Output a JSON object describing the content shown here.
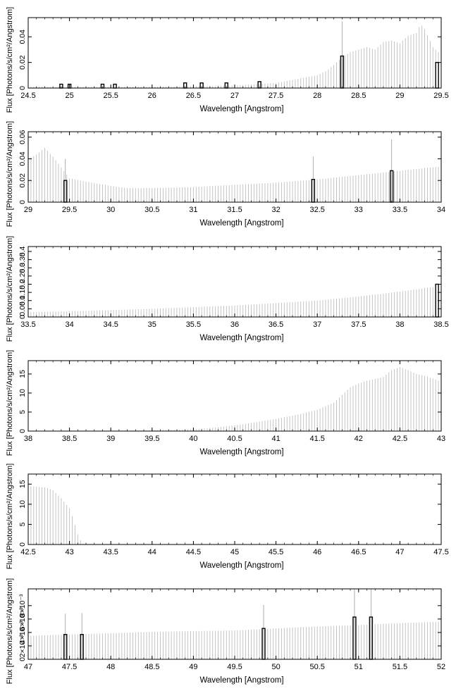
{
  "figure": {
    "ylabel_text": "Flux [Photons/s/cm²/Angstrom]"
  },
  "chart_data": [
    {
      "type": "bar",
      "xlabel": "Wavelength [Angstrom]",
      "ylabel": "Flux [Photons/s/cm²/Angstrom]",
      "xlim": [
        24.5,
        29.5
      ],
      "ylim": [
        0,
        0.055
      ],
      "xticks": [
        "24.5",
        "25",
        "25.5",
        "26",
        "26.5",
        "27",
        "27.5",
        "28",
        "28.5",
        "29",
        "29.5"
      ],
      "yticks": [
        "0",
        "0.02",
        "0.04"
      ],
      "continuum": [
        [
          24.5,
          0.001
        ],
        [
          26.0,
          0.001
        ],
        [
          27.0,
          0.002
        ],
        [
          27.5,
          0.004
        ],
        [
          28.0,
          0.01
        ],
        [
          28.1,
          0.013
        ],
        [
          28.2,
          0.018
        ],
        [
          28.3,
          0.024
        ],
        [
          28.4,
          0.028
        ],
        [
          28.5,
          0.03
        ],
        [
          28.6,
          0.032
        ],
        [
          28.7,
          0.03
        ],
        [
          28.8,
          0.036
        ],
        [
          28.9,
          0.037
        ],
        [
          29.0,
          0.035
        ],
        [
          29.1,
          0.041
        ],
        [
          29.2,
          0.043
        ],
        [
          29.25,
          0.05
        ],
        [
          29.3,
          0.046
        ],
        [
          29.4,
          0.032
        ],
        [
          29.5,
          0.026
        ]
      ],
      "highlighted_bins": [
        {
          "x": 24.9,
          "y": 0.003
        },
        {
          "x": 25.0,
          "y": 0.003
        },
        {
          "x": 25.4,
          "y": 0.003
        },
        {
          "x": 25.55,
          "y": 0.003
        },
        {
          "x": 26.4,
          "y": 0.004
        },
        {
          "x": 26.6,
          "y": 0.004
        },
        {
          "x": 26.9,
          "y": 0.004
        },
        {
          "x": 27.3,
          "y": 0.005
        },
        {
          "x": 28.3,
          "y": 0.025
        },
        {
          "x": 29.45,
          "y": 0.02
        }
      ],
      "error_spikes": [
        {
          "x": 28.3,
          "y": 0.052
        }
      ]
    },
    {
      "type": "bar",
      "xlabel": "Wavelength [Angstrom]",
      "ylabel": "Flux [Photons/s/cm²/Angstrom]",
      "xlim": [
        29,
        34
      ],
      "ylim": [
        0,
        0.065
      ],
      "xticks": [
        "29",
        "29.5",
        "30",
        "30.5",
        "31",
        "31.5",
        "32",
        "32.5",
        "33",
        "33.5",
        "34"
      ],
      "yticks": [
        "0",
        "0.02",
        "0.04",
        "0.06"
      ],
      "continuum": [
        [
          29.0,
          0.04
        ],
        [
          29.1,
          0.044
        ],
        [
          29.2,
          0.05
        ],
        [
          29.3,
          0.042
        ],
        [
          29.4,
          0.032
        ],
        [
          29.5,
          0.022
        ],
        [
          29.7,
          0.019
        ],
        [
          30.0,
          0.015
        ],
        [
          30.2,
          0.013
        ],
        [
          30.5,
          0.013
        ],
        [
          31.0,
          0.014
        ],
        [
          31.5,
          0.016
        ],
        [
          32.0,
          0.018
        ],
        [
          32.5,
          0.021
        ],
        [
          33.0,
          0.025
        ],
        [
          33.5,
          0.029
        ],
        [
          34.0,
          0.033
        ]
      ],
      "highlighted_bins": [
        {
          "x": 29.45,
          "y": 0.02
        },
        {
          "x": 32.45,
          "y": 0.021
        },
        {
          "x": 33.4,
          "y": 0.029
        }
      ],
      "error_spikes": [
        {
          "x": 29.45,
          "y": 0.04
        },
        {
          "x": 32.45,
          "y": 0.042
        },
        {
          "x": 33.4,
          "y": 0.058
        }
      ]
    },
    {
      "type": "bar",
      "xlabel": "Wavelength [Angstrom]",
      "ylabel": "Flux [Photons/s/cm²/Angstrom]",
      "xlim": [
        33.5,
        38.5
      ],
      "ylim": [
        0,
        0.43
      ],
      "xticks": [
        "33.5",
        "34",
        "34.5",
        "35",
        "35.5",
        "36",
        "36.5",
        "37",
        "37.5",
        "38",
        "38.5"
      ],
      "yticks": [
        "0",
        "0.05",
        "0.1",
        "0.15",
        "0.2",
        "0.25",
        "0.3",
        "0.35",
        "0.4"
      ],
      "continuum": [
        [
          33.5,
          0.03
        ],
        [
          34.0,
          0.035
        ],
        [
          34.5,
          0.042
        ],
        [
          35.0,
          0.05
        ],
        [
          35.5,
          0.06
        ],
        [
          36.0,
          0.07
        ],
        [
          36.5,
          0.085
        ],
        [
          37.0,
          0.1
        ],
        [
          37.5,
          0.125
        ],
        [
          38.0,
          0.155
        ],
        [
          38.5,
          0.19
        ]
      ],
      "highlighted_bins": [
        {
          "x": 38.45,
          "y": 0.2
        }
      ],
      "error_spikes": []
    },
    {
      "type": "bar",
      "xlabel": "Wavelength [Angstrom]",
      "ylabel": "Flux [Photons/s/cm²/Angstrom]",
      "xlim": [
        38,
        43
      ],
      "ylim": [
        0,
        18.5
      ],
      "xticks": [
        "38",
        "38.5",
        "39",
        "39.5",
        "40",
        "40.5",
        "41",
        "41.5",
        "42",
        "42.5",
        "43"
      ],
      "yticks": [
        "0",
        "5",
        "10",
        "15"
      ],
      "continuum": [
        [
          38.0,
          0.1
        ],
        [
          39.0,
          0.1
        ],
        [
          39.5,
          0.2
        ],
        [
          40.0,
          0.5
        ],
        [
          40.3,
          1.0
        ],
        [
          40.6,
          1.8
        ],
        [
          41.0,
          3.2
        ],
        [
          41.3,
          4.5
        ],
        [
          41.5,
          5.6
        ],
        [
          41.7,
          7.5
        ],
        [
          41.8,
          9.5
        ],
        [
          41.9,
          11.5
        ],
        [
          42.0,
          12.5
        ],
        [
          42.1,
          13.2
        ],
        [
          42.3,
          14.2
        ],
        [
          42.4,
          16.0
        ],
        [
          42.5,
          16.8
        ],
        [
          42.6,
          16.0
        ],
        [
          42.7,
          15.0
        ],
        [
          42.8,
          14.5
        ],
        [
          42.9,
          13.8
        ],
        [
          43.0,
          13.0
        ]
      ],
      "highlighted_bins": [],
      "error_spikes": []
    },
    {
      "type": "bar",
      "xlabel": "Wavelength [Angstrom]",
      "ylabel": "Flux [Photons/s/cm²/Angstrom]",
      "xlim": [
        42.5,
        47.5
      ],
      "ylim": [
        0,
        17.5
      ],
      "xticks": [
        "42.5",
        "43",
        "43.5",
        "44",
        "44.5",
        "45",
        "45.5",
        "46",
        "46.5",
        "47",
        "47.5"
      ],
      "yticks": [
        "0",
        "5",
        "10",
        "15"
      ],
      "continuum": [
        [
          42.5,
          14.5
        ],
        [
          42.7,
          14.2
        ],
        [
          42.8,
          13.5
        ],
        [
          42.9,
          11.5
        ],
        [
          43.0,
          9.0
        ],
        [
          43.05,
          6.0
        ],
        [
          43.1,
          2.5
        ],
        [
          43.15,
          0.3
        ],
        [
          43.2,
          0.0
        ],
        [
          47.5,
          0.0
        ]
      ],
      "highlighted_bins": [],
      "error_spikes": []
    },
    {
      "type": "bar",
      "xlabel": "Wavelength [Angstrom]",
      "ylabel": "Flux [Photons/s/cm²/Angstrom]",
      "xlim": [
        47,
        52
      ],
      "ylim": [
        0,
        0.0105
      ],
      "xticks": [
        "47",
        "47.5",
        "48",
        "48.5",
        "49",
        "49.5",
        "50",
        "50.5",
        "51",
        "51.5",
        "52"
      ],
      "yticks": [
        "0",
        "2×10⁻³",
        "4×10⁻³",
        "6×10⁻³",
        "8×10⁻³"
      ],
      "continuum": [
        [
          47.0,
          0.0035
        ],
        [
          47.5,
          0.0037
        ],
        [
          48.0,
          0.0039
        ],
        [
          48.5,
          0.0041
        ],
        [
          49.0,
          0.0042
        ],
        [
          49.5,
          0.0043
        ],
        [
          50.0,
          0.0046
        ],
        [
          50.3,
          0.0048
        ],
        [
          50.5,
          0.0049
        ],
        [
          51.0,
          0.0051
        ],
        [
          51.3,
          0.0053
        ],
        [
          51.5,
          0.0054
        ],
        [
          52.0,
          0.0056
        ]
      ],
      "highlighted_bins": [
        {
          "x": 47.45,
          "y": 0.0037
        },
        {
          "x": 47.65,
          "y": 0.0037
        },
        {
          "x": 49.85,
          "y": 0.0046
        },
        {
          "x": 50.95,
          "y": 0.0063
        },
        {
          "x": 51.15,
          "y": 0.0063
        }
      ],
      "error_spikes": [
        {
          "x": 47.45,
          "y": 0.0068
        },
        {
          "x": 47.65,
          "y": 0.0069
        },
        {
          "x": 49.85,
          "y": 0.0081
        },
        {
          "x": 50.95,
          "y": 0.0107
        },
        {
          "x": 51.15,
          "y": 0.0106
        }
      ]
    }
  ]
}
